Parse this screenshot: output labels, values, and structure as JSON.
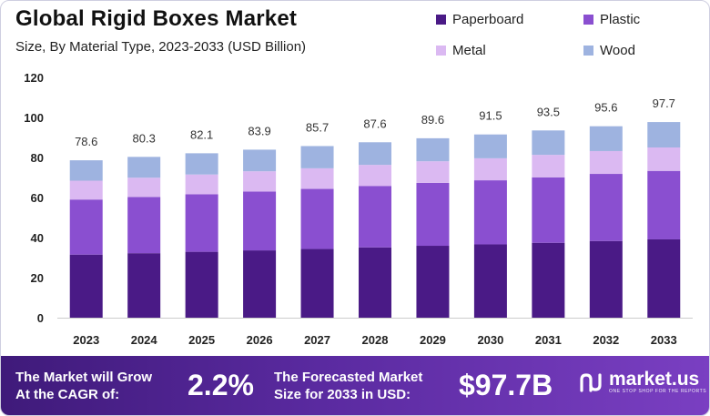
{
  "header": {
    "title": "Global Rigid Boxes Market",
    "subtitle": "Size, By Material Type, 2023-2033 (USD Billion)"
  },
  "colors": {
    "Paperboard": "#4a1a86",
    "Plastic": "#8a4fd0",
    "Metal": "#dbb9f2",
    "Wood": "#9eb3e0"
  },
  "chart_data": {
    "type": "bar",
    "stacked": true,
    "title": "Global Rigid Boxes Market",
    "subtitle": "Size, By Material Type, 2023-2033 (USD Billion)",
    "categories": [
      "2023",
      "2024",
      "2025",
      "2026",
      "2027",
      "2028",
      "2029",
      "2030",
      "2031",
      "2032",
      "2033"
    ],
    "series": [
      {
        "name": "Paperboard",
        "values": [
          31.5,
          32.2,
          32.9,
          33.6,
          34.3,
          35.1,
          35.9,
          36.6,
          37.4,
          38.3,
          39.1
        ]
      },
      {
        "name": "Plastic",
        "values": [
          27.5,
          28.1,
          28.7,
          29.4,
          30.0,
          30.7,
          31.4,
          32.0,
          32.7,
          33.5,
          34.2
        ]
      },
      {
        "name": "Metal",
        "values": [
          9.4,
          9.6,
          9.9,
          10.1,
          10.3,
          10.5,
          10.8,
          11.0,
          11.2,
          11.4,
          11.7
        ]
      },
      {
        "name": "Wood",
        "values": [
          10.2,
          10.4,
          10.6,
          10.8,
          11.1,
          11.3,
          11.5,
          11.9,
          12.2,
          12.4,
          12.7
        ]
      }
    ],
    "totals": [
      "78.6",
      "80.3",
      "82.1",
      "83.9",
      "85.7",
      "87.6",
      "89.6",
      "91.5",
      "93.5",
      "95.6",
      "97.7"
    ],
    "ylim": [
      0,
      120
    ],
    "yticks": [
      "0",
      "20",
      "40",
      "60",
      "80",
      "100",
      "120"
    ],
    "xlabel": "",
    "ylabel": "",
    "legend": "top-right",
    "grid": false
  },
  "banner": {
    "cagr_label_line1": "The Market will Grow",
    "cagr_label_line2": "At the CAGR of:",
    "cagr_value": "2.2%",
    "forecast_label_line1": "The Forecasted Market",
    "forecast_label_line2": "Size for 2033 in USD:",
    "forecast_value": "$97.7B",
    "brand_name": "market.us",
    "brand_tagline": "ONE STOP SHOP FOR THE REPORTS"
  }
}
